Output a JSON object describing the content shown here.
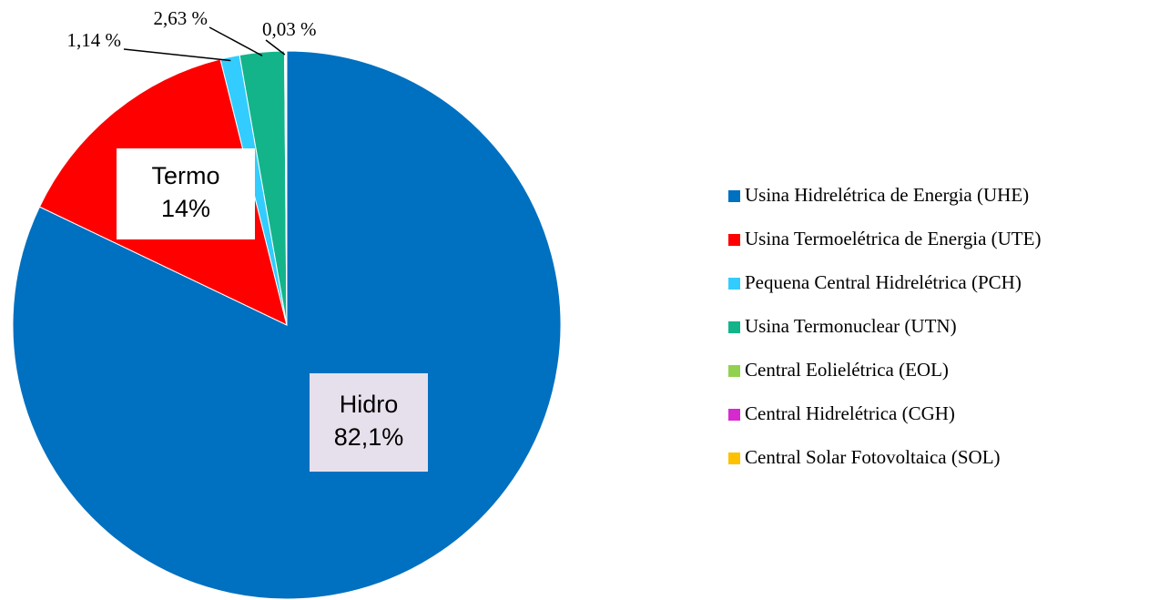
{
  "chart_data": {
    "type": "pie",
    "categories": [
      "Usina Hidrelétrica de Energia (UHE)",
      "Usina Termoelétrica de Energia (UTE)",
      "Pequena Central Hidrelétrica (PCH)",
      "Usina Termonuclear (UTN)",
      "Central Eolielétrica (EOL)",
      "Central Hidrelétrica (CGH)",
      "Central Solar Fotovoltaica (SOL)"
    ],
    "values": [
      82.1,
      14,
      1.14,
      2.63,
      0.03,
      0.05,
      0.05
    ],
    "value_labels": [
      "82,1%",
      "14%",
      "1,14 %",
      "2,63 %",
      "0,03 %",
      null,
      null
    ],
    "slice_names": [
      "Hidro",
      "Termo",
      null,
      null,
      null,
      null,
      null
    ],
    "colors": [
      "#0070c0",
      "#ff0000",
      "#33ccff",
      "#13b48a",
      "#92d050",
      "#d62ad0",
      "#ffc000"
    ],
    "legend": "right"
  }
}
